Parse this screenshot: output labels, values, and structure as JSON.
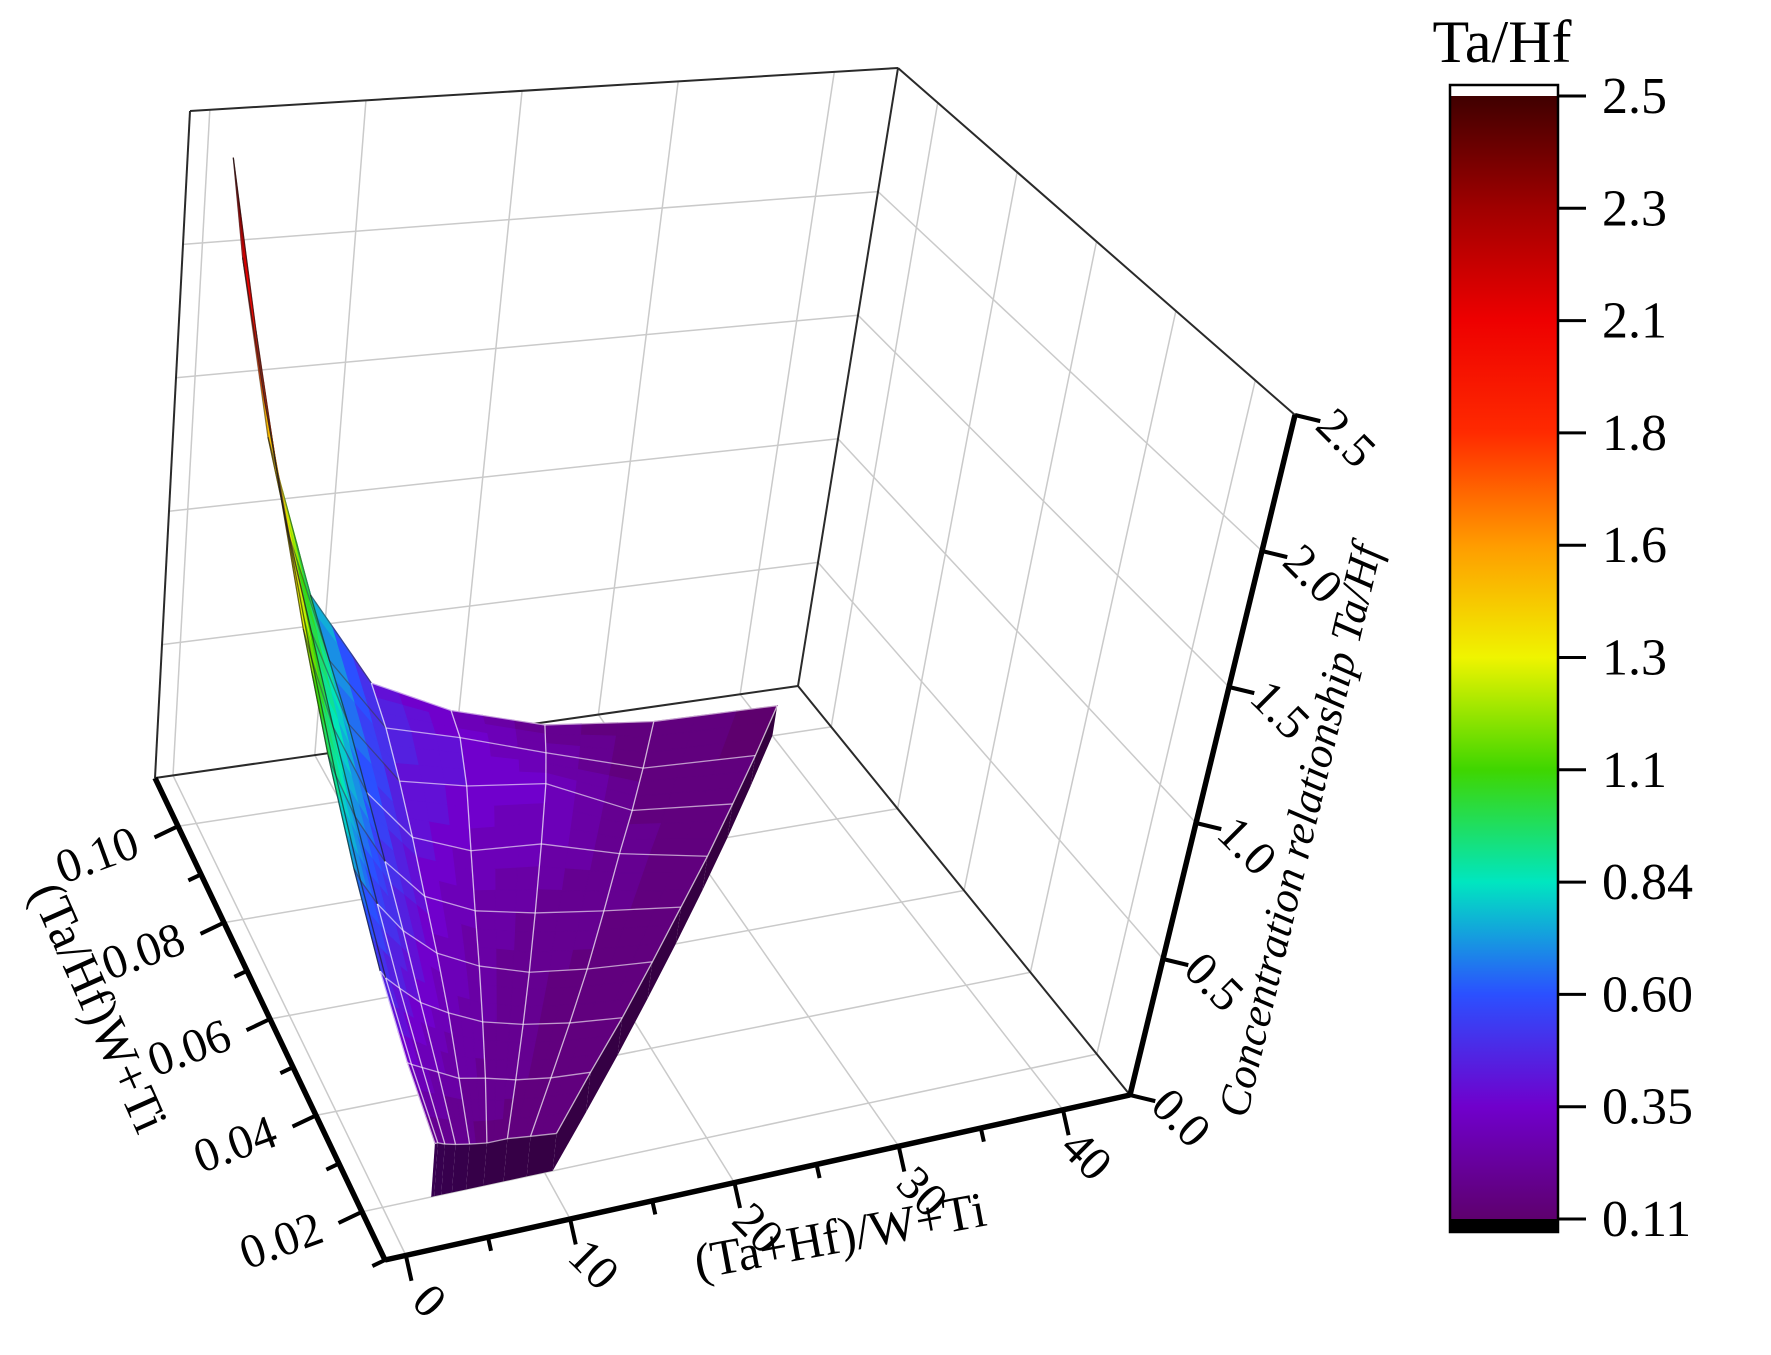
{
  "figure": {
    "background": "#ffffff",
    "frame_color": "#2a2a2a",
    "grid_color": "#cacaca"
  },
  "axes": {
    "x": {
      "title": "(Ta+Hf)/W+Ti",
      "tick_labels": [
        "0",
        "10",
        "20",
        "30",
        "40"
      ],
      "tick_values": [
        0,
        10,
        20,
        30,
        40
      ],
      "minor_values": [
        5,
        15,
        25,
        35
      ],
      "range": [
        -1.27,
        44.08
      ]
    },
    "y": {
      "title": "(Ta/Hf)W+Ti",
      "tick_labels": [
        "0.02",
        "0.04",
        "0.06",
        "0.08",
        "0.10"
      ],
      "tick_values": [
        0.02,
        0.04,
        0.06,
        0.08,
        0.1
      ],
      "minor_values": [
        0.01,
        0.03,
        0.05,
        0.07,
        0.09
      ],
      "range": [
        0.01,
        0.11
      ]
    },
    "z": {
      "title": "Concentration relationship Ta/Hf",
      "tick_labels": [
        "0.0",
        "0.5",
        "1.0",
        "1.5",
        "2.0",
        "2.5"
      ],
      "tick_values": [
        0,
        0.5,
        1.0,
        1.5,
        2.0,
        2.5
      ],
      "grid_values": [
        0.5,
        1.0,
        1.5,
        2.0
      ],
      "range": [
        0,
        2.5
      ]
    }
  },
  "colorbar": {
    "title": "Ta/Hf",
    "labels": [
      "2.5",
      "2.3",
      "2.1",
      "1.8",
      "1.6",
      "1.3",
      "1.1",
      "0.84",
      "0.60",
      "0.35",
      "0.11"
    ],
    "values": [
      2.5,
      2.3,
      2.1,
      1.8,
      1.6,
      1.3,
      1.1,
      0.84,
      0.6,
      0.35,
      0.11
    ],
    "over_color": "#ffffff",
    "under_color": "#000000"
  },
  "chart_data": {
    "type": "surface3d",
    "title": "",
    "xlabel": "(Ta+Hf)/W+Ti",
    "ylabel": "(Ta/Hf)W+Ti",
    "zlabel": "Concentration relationship Ta/Hf",
    "xlim": [
      0,
      40
    ],
    "ylim": [
      0.02,
      0.1
    ],
    "zlim": [
      0.11,
      2.5
    ],
    "y_values": [
      0.02,
      0.03,
      0.04,
      0.05,
      0.06,
      0.07,
      0.08,
      0.09,
      0.1
    ],
    "x_matrix": [
      [
        3.0,
        3.18,
        3.62,
        4.28,
        5.15,
        6.22,
        7.47,
        8.9,
        10.5
      ],
      [
        2.63,
        2.9,
        3.58,
        4.6,
        5.94,
        7.59,
        9.51,
        11.72,
        14.19
      ],
      [
        2.25,
        2.62,
        3.54,
        4.93,
        6.74,
        8.96,
        11.56,
        14.54,
        17.88
      ],
      [
        1.88,
        2.34,
        3.5,
        5.25,
        7.53,
        10.33,
        13.61,
        17.36,
        21.56
      ],
      [
        1.5,
        2.06,
        3.46,
        5.57,
        8.32,
        11.69,
        15.65,
        20.17,
        25.25
      ],
      [
        1.13,
        1.78,
        3.42,
        5.89,
        9.11,
        13.06,
        17.69,
        22.99,
        28.94
      ],
      [
        0.75,
        1.51,
        3.38,
        6.21,
        9.9,
        14.43,
        19.74,
        25.82,
        32.63
      ],
      [
        0.38,
        1.23,
        3.34,
        6.53,
        10.69,
        15.79,
        21.78,
        28.62,
        36.3
      ],
      [
        0.0,
        0.95,
        3.3,
        6.85,
        11.48,
        17.17,
        23.83,
        31.45,
        40.0
      ]
    ],
    "z_matrix": [
      [
        0.2,
        0.2,
        0.19,
        0.18,
        0.17,
        0.16,
        0.16,
        0.15,
        0.14
      ],
      [
        0.33,
        0.32,
        0.3,
        0.27,
        0.23,
        0.21,
        0.18,
        0.16,
        0.15
      ],
      [
        0.5,
        0.47,
        0.42,
        0.35,
        0.29,
        0.23,
        0.19,
        0.16,
        0.14
      ],
      [
        0.71,
        0.66,
        0.56,
        0.44,
        0.33,
        0.25,
        0.19,
        0.16,
        0.14
      ],
      [
        0.96,
        0.88,
        0.71,
        0.52,
        0.36,
        0.27,
        0.22,
        0.18,
        0.14
      ],
      [
        1.26,
        1.14,
        0.87,
        0.6,
        0.4,
        0.31,
        0.29,
        0.2,
        0.13
      ],
      [
        1.62,
        1.43,
        1.05,
        0.68,
        0.43,
        0.37,
        0.33,
        0.17,
        0.13
      ],
      [
        2.03,
        1.75,
        1.23,
        0.74,
        0.45,
        0.37,
        0.26,
        0.14,
        0.12
      ],
      [
        2.5,
        2.12,
        1.43,
        0.81,
        0.44,
        0.29,
        0.18,
        0.13,
        0.12
      ]
    ],
    "colormap_values": [
      0.11,
      0.35,
      0.6,
      0.84,
      1.1,
      1.3,
      1.6,
      1.8,
      2.1,
      2.3,
      2.5
    ],
    "colormap_colors": [
      "#5E006E",
      "#7000CC",
      "#2B50FF",
      "#00E6C0",
      "#3FD600",
      "#EFF400",
      "#FF9C00",
      "#FF2A00",
      "#EE0000",
      "#A00000",
      "#400000"
    ],
    "legend_position": "right",
    "grid": true
  }
}
